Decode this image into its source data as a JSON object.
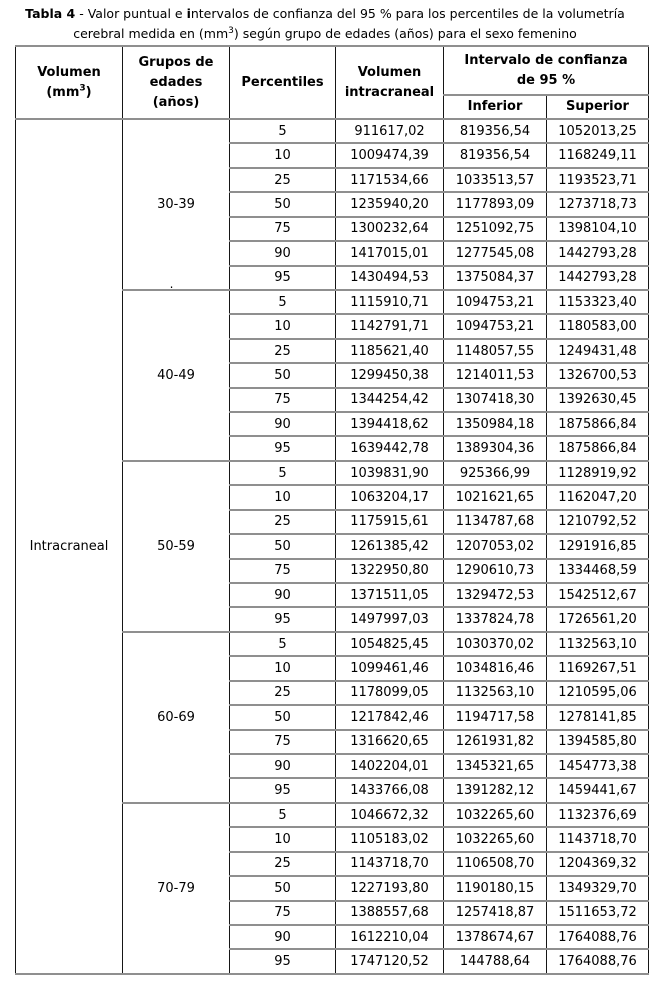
{
  "title": {
    "bold": "Tabla 4",
    "mid": " - Valor puntual e ",
    "bold_i": "i",
    "rest": "ntervalos de confianza del 95 % para los percentiles de la volumetría",
    "line2_pre": "cerebral medida en (mm",
    "line2_sup": "3",
    "line2_post": ") según grupo de edades (años) para el sexo femenino"
  },
  "header": {
    "col1_line1": "Volumen",
    "col1_line2_pre": "(mm",
    "col1_sup": "3",
    "col1_line2_post": ")",
    "col2_lines": [
      "Grupos de",
      "edades",
      "(años)"
    ],
    "col3": "Percentiles",
    "col4_lines": [
      "Volumen",
      "intracraneal"
    ],
    "ci_line1": "Intervalo de confianza",
    "ci_line2": "de 95 %",
    "inferior": "Inferior",
    "superior": "Superior"
  },
  "table": {
    "row_label": "Intracraneal",
    "groups": [
      {
        "age": "30-39",
        "note": ".",
        "rows": [
          [
            "5",
            "911617,02",
            "819356,54",
            "1052013,25"
          ],
          [
            "10",
            "1009474,39",
            "819356,54",
            "1168249,11"
          ],
          [
            "25",
            "1171534,66",
            "1033513,57",
            "1193523,71"
          ],
          [
            "50",
            "1235940,20",
            "1177893,09",
            "1273718,73"
          ],
          [
            "75",
            "1300232,64",
            "1251092,75",
            "1398104,10"
          ],
          [
            "90",
            "1417015,01",
            "1277545,08",
            "1442793,28"
          ],
          [
            "95",
            "1430494,53",
            "1375084,37",
            "1442793,28"
          ]
        ]
      },
      {
        "age": "40-49",
        "rows": [
          [
            "5",
            "1115910,71",
            "1094753,21",
            "1153323,40"
          ],
          [
            "10",
            "1142791,71",
            "1094753,21",
            "1180583,00"
          ],
          [
            "25",
            "1185621,40",
            "1148057,55",
            "1249431,48"
          ],
          [
            "50",
            "1299450,38",
            "1214011,53",
            "1326700,53"
          ],
          [
            "75",
            "1344254,42",
            "1307418,30",
            "1392630,45"
          ],
          [
            "90",
            "1394418,62",
            "1350984,18",
            "1875866,84"
          ],
          [
            "95",
            "1639442,78",
            "1389304,36",
            "1875866,84"
          ]
        ]
      },
      {
        "age": "50-59",
        "rows": [
          [
            "5",
            "1039831,90",
            "925366,99",
            "1128919,92"
          ],
          [
            "10",
            "1063204,17",
            "1021621,65",
            "1162047,20"
          ],
          [
            "25",
            "1175915,61",
            "1134787,68",
            "1210792,52"
          ],
          [
            "50",
            "1261385,42",
            "1207053,02",
            "1291916,85"
          ],
          [
            "75",
            "1322950,80",
            "1290610,73",
            "1334468,59"
          ],
          [
            "90",
            "1371511,05",
            "1329472,53",
            "1542512,67"
          ],
          [
            "95",
            "1497997,03",
            "1337824,78",
            "1726561,20"
          ]
        ]
      },
      {
        "age": "60-69",
        "rows": [
          [
            "5",
            "1054825,45",
            "1030370,02",
            "1132563,10"
          ],
          [
            "10",
            "1099461,46",
            "1034816,46",
            "1169267,51"
          ],
          [
            "25",
            "1178099,05",
            "1132563,10",
            "1210595,06"
          ],
          [
            "50",
            "1217842,46",
            "1194717,58",
            "1278141,85"
          ],
          [
            "75",
            "1316620,65",
            "1261931,82",
            "1394585,80"
          ],
          [
            "90",
            "1402204,01",
            "1345321,65",
            "1454773,38"
          ],
          [
            "95",
            "1433766,08",
            "1391282,12",
            "1459441,67"
          ]
        ]
      },
      {
        "age": "70-79",
        "rows": [
          [
            "5",
            "1046672,32",
            "1032265,60",
            "1132376,69"
          ],
          [
            "10",
            "1105183,02",
            "1032265,60",
            "1143718,70"
          ],
          [
            "25",
            "1143718,70",
            "1106508,70",
            "1204369,32"
          ],
          [
            "50",
            "1227193,80",
            "1190180,15",
            "1349329,70"
          ],
          [
            "75",
            "1388557,68",
            "1257418,87",
            "1511653,72"
          ],
          [
            "90",
            "1612210,04",
            "1378674,67",
            "1764088,76"
          ],
          [
            "95",
            "1747120,52",
            "144788,64",
            "1764088,76"
          ]
        ]
      }
    ]
  }
}
